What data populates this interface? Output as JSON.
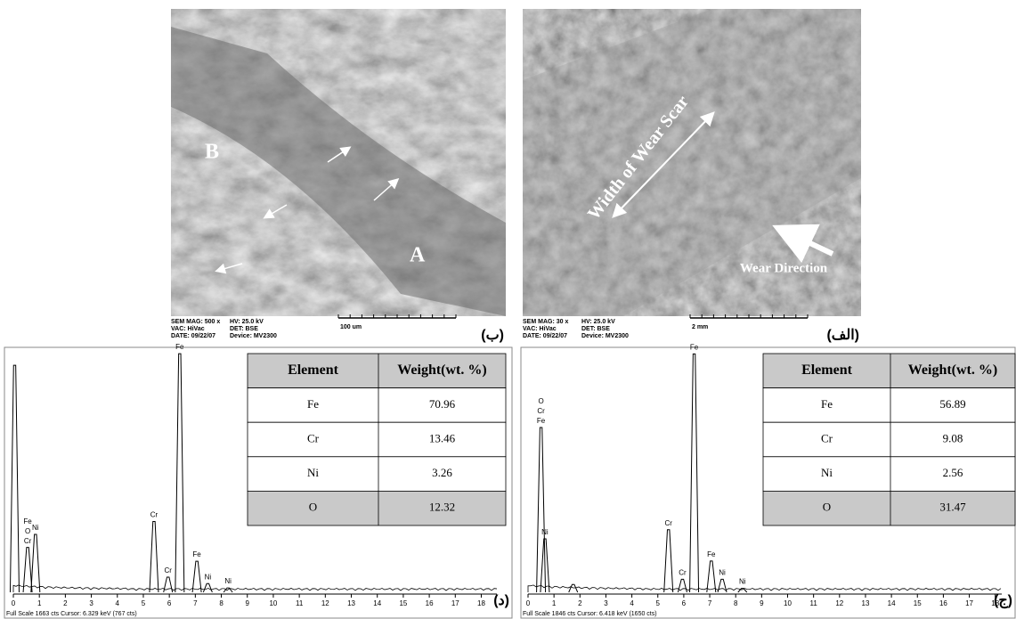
{
  "panels": {
    "b": {
      "label": "(ب)",
      "marker_b": "B",
      "marker_a": "A",
      "info": [
        [
          "SEM MAG: 500 x",
          "VAC: HiVac",
          "DATE: 09/22/07"
        ],
        [
          "HV: 25.0 kV",
          "DET: BSE",
          "Device: MV2300"
        ]
      ],
      "scale": "100 um"
    },
    "alef": {
      "label": "(الف)",
      "scar": "Width of Wear Scar",
      "direction": "Wear Direction",
      "info": [
        [
          "SEM MAG: 30 x",
          "VAC: HiVac",
          "DATE: 09/22/07"
        ],
        [
          "HV: 25.0 kV",
          "DET: BSE",
          "Device: MV2300"
        ]
      ],
      "scale": "2 mm"
    },
    "dal": {
      "label": "(د)",
      "table": {
        "header": [
          "Element",
          "Weight(wt. %)"
        ],
        "rows": [
          [
            "Fe",
            "70.96"
          ],
          [
            "Cr",
            "13.46"
          ],
          [
            "Ni",
            "3.26"
          ],
          [
            "O",
            "12.32"
          ]
        ]
      },
      "xlim": [
        0,
        18.6
      ],
      "ylim": [
        0,
        1663
      ],
      "xticks": [
        0,
        1,
        2,
        3,
        4,
        5,
        6,
        7,
        8,
        9,
        10,
        11,
        12,
        13,
        14,
        15,
        16,
        17,
        18
      ],
      "peaks": [
        {
          "kev": 0.05,
          "cts": 1570,
          "labels": []
        },
        {
          "kev": 0.55,
          "cts": 310,
          "labels": [
            "Fe",
            "O",
            "Cr"
          ]
        },
        {
          "kev": 0.85,
          "cts": 400,
          "labels": [
            "Ni"
          ]
        },
        {
          "kev": 5.41,
          "cts": 490,
          "labels": [
            "Cr"
          ]
        },
        {
          "kev": 5.95,
          "cts": 105,
          "labels": [
            "Cr"
          ]
        },
        {
          "kev": 6.4,
          "cts": 1650,
          "labels": [
            "Fe"
          ]
        },
        {
          "kev": 7.06,
          "cts": 215,
          "labels": [
            "Fe"
          ]
        },
        {
          "kev": 7.48,
          "cts": 60,
          "labels": [
            "Ni"
          ]
        },
        {
          "kev": 8.26,
          "cts": 30,
          "labels": [
            "Ni"
          ]
        }
      ],
      "footer": "Full Scale 1663 cts  Cursor: 6.329 keV (767 cts)"
    },
    "jim": {
      "label": "(ج)",
      "table": {
        "header": [
          "Element",
          "Weight(wt. %)"
        ],
        "rows": [
          [
            "Fe",
            "56.89"
          ],
          [
            "Cr",
            "9.08"
          ],
          [
            "Ni",
            "2.56"
          ],
          [
            "O",
            "31.47"
          ]
        ]
      },
      "xlim": [
        0,
        18.25
      ],
      "ylim": [
        0,
        1846
      ],
      "xticks": [
        0,
        1,
        2,
        3,
        4,
        5,
        6,
        7,
        8,
        9,
        10,
        11,
        12,
        13,
        14,
        15,
        16,
        17,
        18
      ],
      "peaks": [
        {
          "kev": 0.5,
          "cts": 1265,
          "labels": [
            "O",
            "Cr",
            "Fe"
          ]
        },
        {
          "kev": 0.65,
          "cts": 410,
          "labels": [
            "Ni"
          ]
        },
        {
          "kev": 1.74,
          "cts": 60,
          "labels": []
        },
        {
          "kev": 5.41,
          "cts": 480,
          "labels": [
            "Cr"
          ]
        },
        {
          "kev": 5.95,
          "cts": 100,
          "labels": [
            "Cr"
          ]
        },
        {
          "kev": 6.4,
          "cts": 1830,
          "labels": [
            "Fe"
          ]
        },
        {
          "kev": 7.06,
          "cts": 240,
          "labels": [
            "Fe"
          ]
        },
        {
          "kev": 7.48,
          "cts": 100,
          "labels": [
            "Ni"
          ]
        },
        {
          "kev": 8.26,
          "cts": 30,
          "labels": [
            "Ni"
          ]
        }
      ],
      "footer": "Full Scale 1846 cts  Cursor: 6.418 keV (1650 cts)"
    }
  }
}
